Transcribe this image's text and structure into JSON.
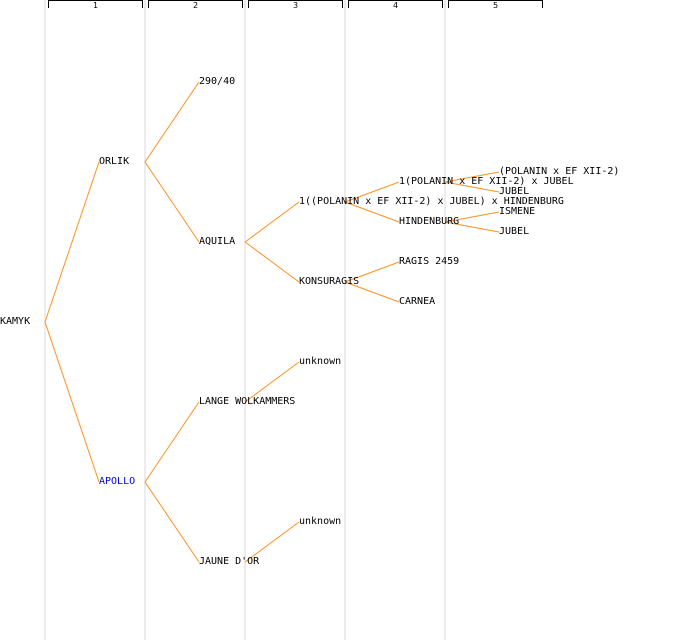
{
  "generations": [
    "1",
    "2",
    "3",
    "4",
    "5"
  ],
  "colors": {
    "line": "#ff9020",
    "link": "#0000ee",
    "band": "#ececec"
  },
  "nodes": {
    "root": "KAMYK",
    "sire": "ORLIK",
    "dam": "APOLLO",
    "sire_sire": "290/40",
    "sire_dam": "AQUILA",
    "dam_sire": "LANGE WOLKAMMERS",
    "dam_dam": "JAUNE D'OR",
    "sd_sire": "1((POLANIN x EF XII-2) x JUBEL) x HINDENBURG",
    "sd_dam": "KONSURAGIS",
    "ds_sire": "unknown",
    "dd_sire": "unknown",
    "sds_sire": "1(POLANIN x EF XII-2) x JUBEL",
    "sds_dam": "HINDENBURG",
    "sdd_sire": "RAGIS 2459",
    "sdd_dam": "CARNEA",
    "sdss_sire": "(POLANIN x EF XII-2)",
    "sdss_dam": "JUBEL",
    "sdsd_sire": "ISMENE",
    "sdsd_dam": "JUBEL"
  }
}
